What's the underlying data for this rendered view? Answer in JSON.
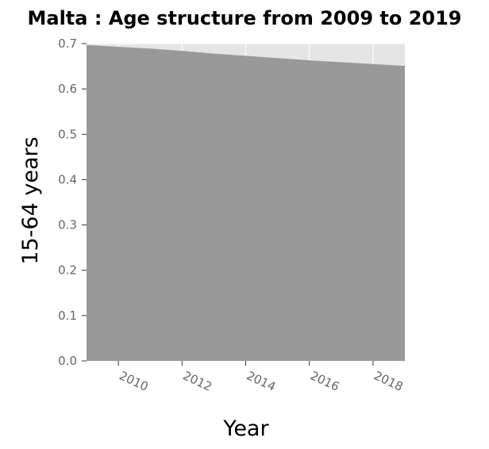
{
  "chart_data": {
    "type": "area",
    "title": "Malta : Age structure from 2009 to 2019",
    "xlabel": "Year",
    "ylabel": "15-64 years",
    "x": [
      2009,
      2010,
      2011,
      2012,
      2013,
      2014,
      2015,
      2016,
      2017,
      2018,
      2019
    ],
    "values": [
      0.697,
      0.693,
      0.689,
      0.684,
      0.678,
      0.673,
      0.668,
      0.663,
      0.659,
      0.655,
      0.651
    ],
    "xlim": [
      2009,
      2019
    ],
    "ylim": [
      0,
      0.7
    ],
    "x_ticks": [
      "2010",
      "2012",
      "2014",
      "2016",
      "2018"
    ],
    "y_ticks": [
      "0.0",
      "0.1",
      "0.2",
      "0.3",
      "0.4",
      "0.5",
      "0.6",
      "0.7"
    ],
    "grid": true,
    "colors": {
      "plot_background": "#e5e5e5",
      "area_fill": "#999999",
      "grid": "#ffffff",
      "tick": "#333333"
    }
  }
}
